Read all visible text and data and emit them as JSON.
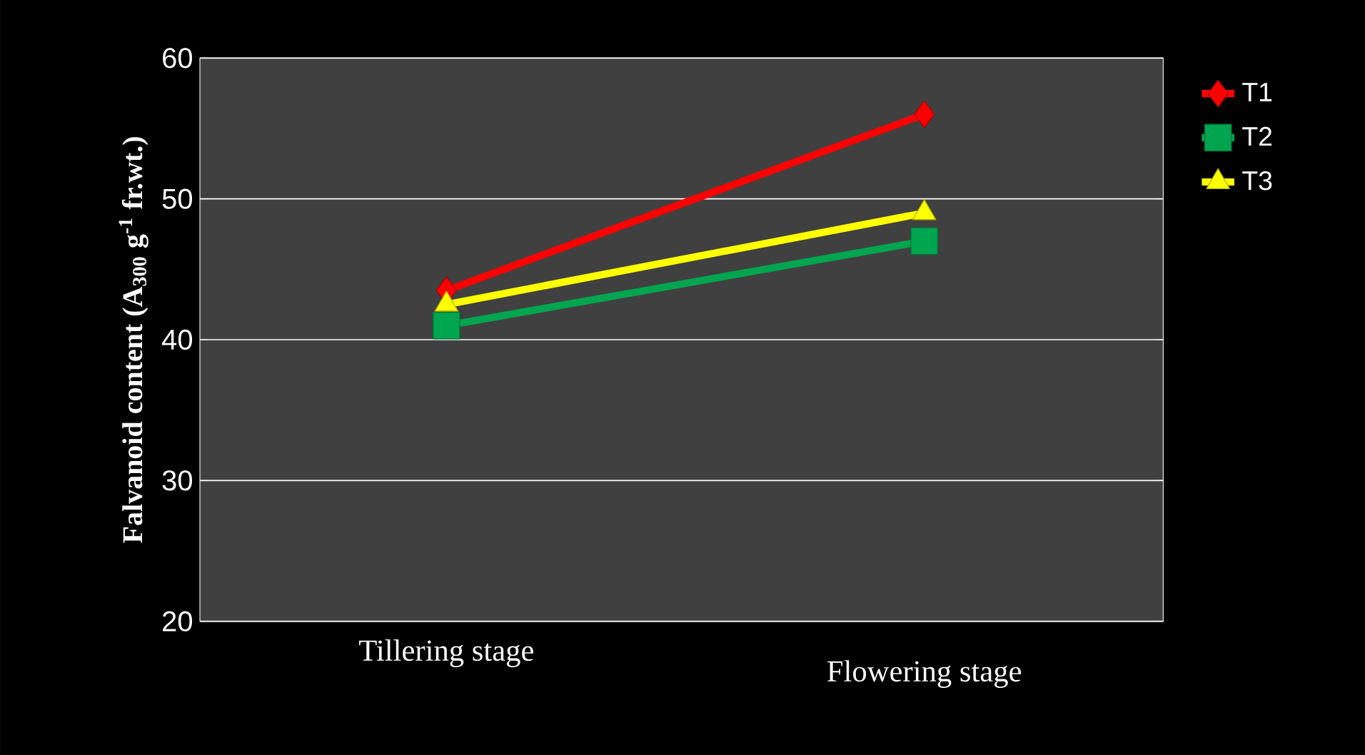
{
  "chart_data": {
    "type": "line",
    "ylabel": "Falvanoid content (A$_{300}$ g$^{-1}$ fr.wt.)",
    "categories": [
      "Tillering stage",
      "Flowering stage"
    ],
    "series": [
      {
        "name": "T1",
        "color": "#ff0000",
        "marker": "diamond",
        "values": [
          43.5,
          56
        ]
      },
      {
        "name": "T2",
        "color": "#00a550",
        "marker": "square",
        "values": [
          41,
          47
        ]
      },
      {
        "name": "T3",
        "color": "#ffff00",
        "marker": "triangle",
        "values": [
          42.5,
          49
        ]
      }
    ],
    "ylim": [
      20,
      60
    ],
    "yticks": [
      20,
      30,
      40,
      50,
      60
    ],
    "grid": "y",
    "legend": "right"
  }
}
